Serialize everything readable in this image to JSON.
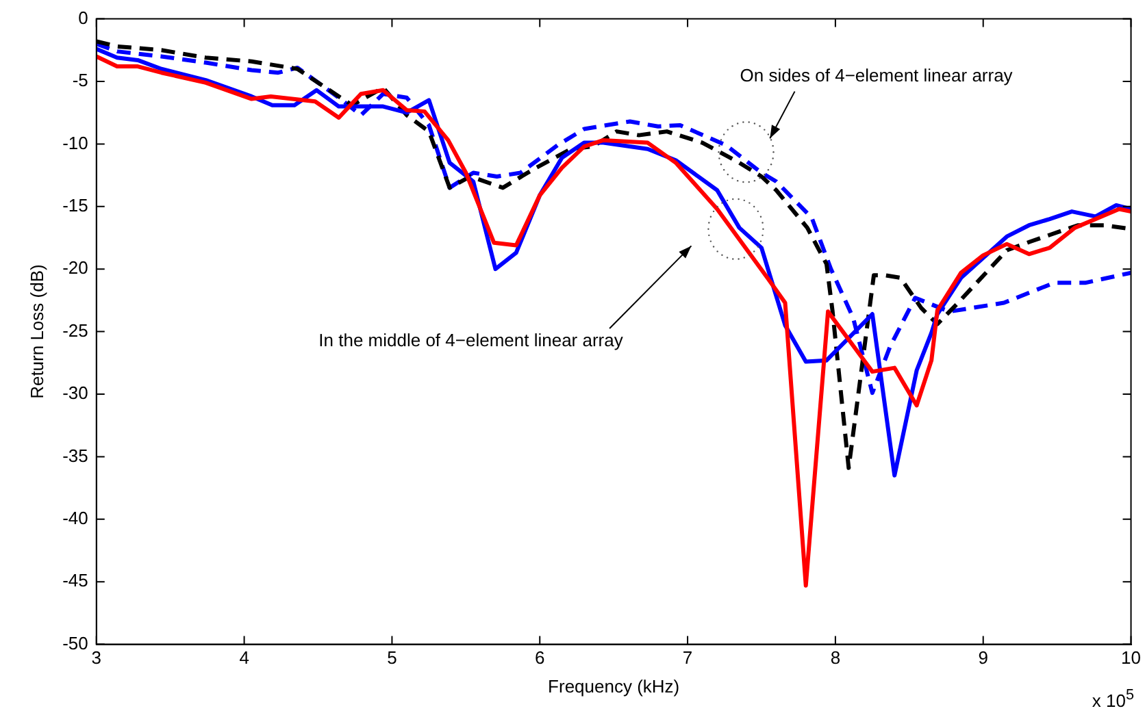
{
  "chart_data": {
    "type": "line",
    "xlabel": "Frequency (kHz)",
    "ylabel": "Return Loss (dB)",
    "xlim": [
      3,
      10
    ],
    "xticks": [
      3,
      4,
      5,
      6,
      7,
      8,
      9,
      10
    ],
    "ylim": [
      -50,
      0
    ],
    "yticks": [
      -50,
      -45,
      -40,
      -35,
      -30,
      -25,
      -20,
      -15,
      -10,
      -5,
      0
    ],
    "grid": false,
    "legend": false,
    "marker": "none",
    "annotations": [
      "On sides of 4−element linear array",
      "In the middle of 4−element linear array",
      "x 10$^{5}$"
    ],
    "series": [
      {
        "color": "#ff0000",
        "line_style": "solid",
        "x": [
          3,
          3.14,
          3.28,
          3.44,
          3.74,
          4.05,
          4.18,
          4.48,
          4.64,
          4.79,
          4.94,
          5.1,
          5.22,
          5.38,
          5.5,
          5.69,
          5.84,
          6.0,
          6.15,
          6.3,
          6.43,
          6.73,
          6.92,
          7.2,
          7.54,
          7.66,
          7.8,
          7.95,
          8.25,
          8.4,
          8.55,
          8.65,
          8.69,
          8.85,
          9.0,
          9.16,
          9.31,
          9.45,
          9.62,
          9.92,
          10
        ],
        "values": [
          -3.0,
          -3.8,
          -3.8,
          -4.3,
          -5.1,
          -6.4,
          -6.2,
          -6.6,
          -7.9,
          -6.0,
          -5.7,
          -7.3,
          -7.4,
          -9.7,
          -12.3,
          -17.9,
          -18.1,
          -14.1,
          -11.9,
          -10.2,
          -9.7,
          -9.9,
          -11.5,
          -15.2,
          -20.7,
          -22.7,
          -45.3,
          -23.4,
          -28.2,
          -27.9,
          -30.9,
          -27.3,
          -23.3,
          -20.3,
          -18.9,
          -18.0,
          -18.8,
          -18.3,
          -16.7,
          -15.2,
          -15.4
        ]
      },
      {
        "color": "#0000ff",
        "line_style": "solid",
        "x": [
          3,
          3.14,
          3.28,
          3.44,
          3.74,
          4.05,
          4.19,
          4.34,
          4.49,
          4.64,
          4.94,
          5.1,
          5.25,
          5.39,
          5.55,
          5.7,
          5.84,
          6.0,
          6.15,
          6.3,
          6.43,
          6.73,
          6.92,
          7.2,
          7.35,
          7.5,
          7.66,
          7.8,
          7.94,
          8.25,
          8.4,
          8.55,
          8.65,
          8.69,
          8.85,
          9.16,
          9.31,
          9.45,
          9.6,
          9.76,
          9.9,
          10
        ],
        "values": [
          -2.4,
          -3.1,
          -3.3,
          -4.0,
          -4.9,
          -6.2,
          -6.9,
          -6.9,
          -5.7,
          -7.0,
          -7.0,
          -7.5,
          -6.5,
          -11.5,
          -13.0,
          -20.0,
          -18.7,
          -14.1,
          -11.1,
          -9.9,
          -9.9,
          -10.4,
          -11.3,
          -13.7,
          -16.7,
          -18.3,
          -24.5,
          -27.4,
          -27.3,
          -23.6,
          -36.5,
          -28.1,
          -25.1,
          -23.6,
          -20.7,
          -17.4,
          -16.5,
          -16.0,
          -15.4,
          -15.8,
          -14.9,
          -15.2
        ]
      },
      {
        "color": "#000000",
        "line_style": "dashed",
        "x": [
          3,
          3.14,
          3.44,
          3.74,
          4.05,
          4.36,
          4.73,
          4.94,
          5.1,
          5.25,
          5.39,
          5.53,
          5.75,
          5.96,
          6.21,
          6.36,
          6.52,
          6.67,
          6.86,
          7.1,
          7.35,
          7.5,
          7.6,
          7.81,
          7.94,
          7.98,
          8.09,
          8.26,
          8.34,
          8.44,
          8.58,
          8.69,
          8.83,
          9.16,
          9.32,
          9.64,
          9.82,
          10
        ],
        "values": [
          -1.8,
          -2.2,
          -2.5,
          -3.1,
          -3.4,
          -4.0,
          -6.9,
          -5.5,
          -7.7,
          -9.0,
          -13.5,
          -12.6,
          -13.5,
          -12.0,
          -10.4,
          -10.2,
          -9.0,
          -9.3,
          -9.0,
          -9.9,
          -11.5,
          -12.6,
          -13.7,
          -16.7,
          -19.6,
          -23.3,
          -35.9,
          -20.5,
          -20.5,
          -20.7,
          -23.1,
          -24.4,
          -22.7,
          -18.5,
          -17.8,
          -16.5,
          -16.5,
          -16.8
        ]
      },
      {
        "color": "#0000ff",
        "line_style": "dashed",
        "x": [
          3,
          3.14,
          3.44,
          3.74,
          4.05,
          4.23,
          4.36,
          4.64,
          4.79,
          4.94,
          5.1,
          5.25,
          5.39,
          5.55,
          5.71,
          5.87,
          6.12,
          6.3,
          6.45,
          6.61,
          6.8,
          6.95,
          7.26,
          7.5,
          7.6,
          7.84,
          7.97,
          8.12,
          8.25,
          8.37,
          8.54,
          8.77,
          9.14,
          9.48,
          9.69,
          10
        ],
        "values": [
          -2.0,
          -2.6,
          -3.0,
          -3.5,
          -4.1,
          -4.3,
          -3.9,
          -6.3,
          -7.7,
          -6.0,
          -6.3,
          -8.5,
          -13.5,
          -12.3,
          -12.6,
          -12.3,
          -10.1,
          -8.8,
          -8.5,
          -8.2,
          -8.6,
          -8.5,
          -10.1,
          -12.3,
          -13.0,
          -15.9,
          -20.0,
          -23.9,
          -29.9,
          -26.2,
          -22.3,
          -23.4,
          -22.7,
          -21.1,
          -21.1,
          -20.3
        ]
      }
    ]
  }
}
